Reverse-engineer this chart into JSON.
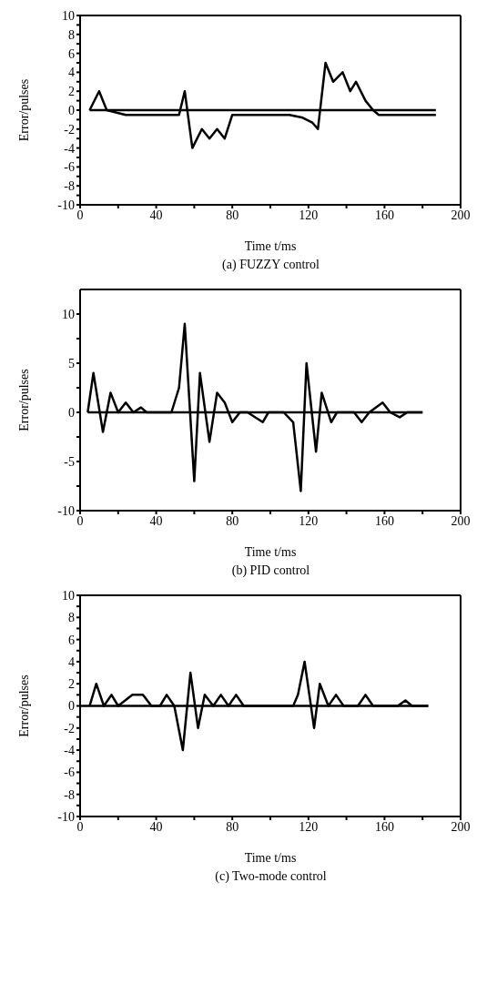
{
  "chart_data": [
    {
      "type": "line",
      "title": "(a) FUZZY control",
      "xlabel": "Time t/ms",
      "ylabel": "Error/pulses",
      "xlim": [
        0,
        200
      ],
      "ylim": [
        -10,
        10
      ],
      "xticks": [
        0,
        {
          "value": 20,
          "label": null
        },
        40,
        {
          "value": 60,
          "label": null
        },
        80,
        {
          "value": 100,
          "label": null
        },
        120,
        {
          "value": 140,
          "label": null
        },
        160,
        {
          "value": 180,
          "label": null
        },
        200
      ],
      "yticks": [
        -10,
        {
          "value": -9,
          "label": null
        },
        -8,
        {
          "value": -7,
          "label": null
        },
        -6,
        {
          "value": -5,
          "label": null
        },
        -4,
        {
          "value": -3,
          "label": null
        },
        -2,
        {
          "value": -1,
          "label": null
        },
        0,
        {
          "value": 1,
          "label": null
        },
        2,
        {
          "value": 3,
          "label": null
        },
        4,
        {
          "value": 5,
          "label": null
        },
        6,
        {
          "value": 7,
          "label": null
        },
        8,
        {
          "value": 9,
          "label": null
        },
        10
      ],
      "series": [
        {
          "color": "#000000",
          "x": [
            5,
            10,
            14,
            24,
            52,
            55,
            59,
            64,
            68,
            72,
            76,
            80,
            110,
            117,
            122,
            125,
            129,
            133,
            138,
            142,
            145,
            150,
            154,
            157,
            187
          ],
          "values": [
            0,
            2,
            0,
            -0.5,
            -0.5,
            2,
            -4,
            -2,
            -3,
            -2,
            -3,
            -0.5,
            -0.5,
            -0.8,
            -1.3,
            -2,
            5,
            3,
            4,
            2,
            3,
            1,
            0,
            -0.5,
            -0.5
          ]
        },
        {
          "color": "#000000",
          "x": [
            5,
            187
          ],
          "values": [
            0,
            0
          ]
        }
      ]
    },
    {
      "type": "line",
      "title": "(b) PID control",
      "xlabel": "Time t/ms",
      "ylabel": "Error/pulses",
      "xlim": [
        0,
        200
      ],
      "ylim": [
        -10,
        12.5
      ],
      "xticks": [
        0,
        {
          "value": 20,
          "label": null
        },
        40,
        {
          "value": 60,
          "label": null
        },
        80,
        {
          "value": 100,
          "label": null
        },
        120,
        {
          "value": 140,
          "label": null
        },
        160,
        {
          "value": 180,
          "label": null
        },
        200
      ],
      "yticks": [
        -10,
        {
          "value": -7.5,
          "label": null
        },
        -5,
        {
          "value": -2.5,
          "label": null
        },
        0,
        {
          "value": 2.5,
          "label": null
        },
        5,
        {
          "value": 7.5,
          "label": null
        },
        10
      ],
      "series": [
        {
          "color": "#000000",
          "x": [
            4,
            7,
            12,
            16,
            20,
            24,
            28,
            32,
            35,
            48,
            52,
            55,
            60,
            63,
            68,
            72,
            76,
            80,
            84,
            88,
            96,
            99,
            107,
            112,
            116,
            119,
            124,
            127,
            132,
            135,
            144,
            148,
            152,
            159,
            163,
            168,
            172,
            180
          ],
          "values": [
            0,
            4,
            -2,
            2,
            0,
            1,
            0,
            0.5,
            0,
            0,
            2.5,
            9,
            -7,
            4,
            -3,
            2,
            1,
            -1,
            0,
            0,
            -1,
            0,
            0,
            -1,
            -8,
            5,
            -4,
            2,
            -1,
            0,
            0,
            -1,
            0,
            1,
            0,
            -0.5,
            0,
            0
          ]
        },
        {
          "color": "#000000",
          "x": [
            4,
            180
          ],
          "values": [
            0,
            0
          ]
        }
      ]
    },
    {
      "type": "line",
      "title": "(c) Two-mode control",
      "xlabel": "Time t/ms",
      "ylabel": "Error/pulses",
      "xlim": [
        0,
        200
      ],
      "ylim": [
        -10,
        10
      ],
      "xticks": [
        0,
        {
          "value": 20,
          "label": null
        },
        40,
        {
          "value": 60,
          "label": null
        },
        80,
        {
          "value": 100,
          "label": null
        },
        120,
        {
          "value": 140,
          "label": null
        },
        160,
        {
          "value": 180,
          "label": null
        },
        200
      ],
      "yticks": [
        -10,
        {
          "value": -9,
          "label": null
        },
        -8,
        {
          "value": -7,
          "label": null
        },
        -6,
        {
          "value": -5,
          "label": null
        },
        -4,
        {
          "value": -3,
          "label": null
        },
        -2,
        {
          "value": -1,
          "label": null
        },
        0,
        {
          "value": 1,
          "label": null
        },
        2,
        {
          "value": 3,
          "label": null
        },
        4,
        {
          "value": 5,
          "label": null
        },
        6,
        {
          "value": 7,
          "label": null
        },
        8,
        {
          "value": 9,
          "label": null
        },
        10
      ],
      "series": [
        {
          "color": "#000000",
          "x": [
            5,
            8.5,
            12.5,
            16.5,
            20,
            27.5,
            33,
            37.5,
            42,
            45.5,
            49.5,
            54,
            58,
            62,
            65.5,
            70,
            74,
            78,
            82,
            86,
            112,
            114.5,
            118,
            123,
            126,
            130.5,
            134.5,
            138.5,
            146,
            150,
            154,
            167,
            171,
            174.5,
            183
          ],
          "values": [
            0,
            2,
            0,
            1,
            0,
            1,
            1,
            0,
            0,
            1,
            0,
            -4,
            3,
            -2,
            1,
            0,
            1,
            0,
            1,
            0,
            0,
            1,
            4,
            -2,
            2,
            0,
            1,
            0,
            0,
            1,
            0,
            0,
            0.5,
            0,
            0
          ]
        },
        {
          "color": "#000000",
          "x": [
            0,
            183
          ],
          "values": [
            0,
            0
          ]
        }
      ]
    }
  ]
}
